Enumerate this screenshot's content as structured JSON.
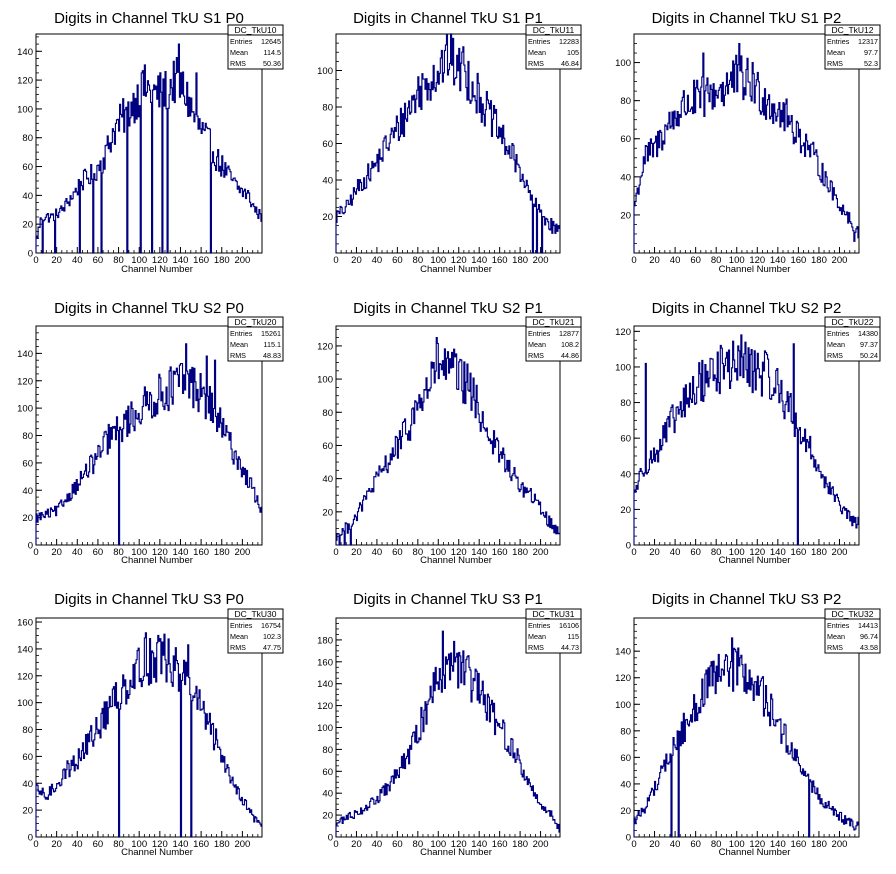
{
  "chart_data": [
    {
      "type": "histogram",
      "title": "Digits in Channel TkU S1 P0",
      "xlabel": "Channel Number",
      "ylabel": "",
      "xlim": [
        0,
        219
      ],
      "ylim": [
        0,
        152
      ],
      "xticks": [
        0,
        20,
        40,
        60,
        80,
        100,
        120,
        140,
        160,
        180,
        200
      ],
      "yticks": [
        0,
        20,
        40,
        60,
        80,
        100,
        120,
        140
      ],
      "stats": {
        "name": "DC_TkU10",
        "entries": "12645",
        "mean": "114.5",
        "rms": "50.36"
      },
      "anchors": [
        [
          0,
          10
        ],
        [
          5,
          25
        ],
        [
          15,
          25
        ],
        [
          25,
          30
        ],
        [
          35,
          40
        ],
        [
          45,
          50
        ],
        [
          55,
          55
        ],
        [
          65,
          65
        ],
        [
          75,
          85
        ],
        [
          85,
          95
        ],
        [
          95,
          105
        ],
        [
          105,
          115
        ],
        [
          115,
          110
        ],
        [
          125,
          112
        ],
        [
          135,
          120
        ],
        [
          145,
          110
        ],
        [
          155,
          90
        ],
        [
          165,
          80
        ],
        [
          175,
          65
        ],
        [
          185,
          55
        ],
        [
          195,
          45
        ],
        [
          205,
          40
        ],
        [
          212,
          30
        ],
        [
          218,
          25
        ]
      ],
      "spikes": [
        [
          102,
          125
        ],
        [
          138,
          145
        ],
        [
          155,
          125
        ]
      ],
      "zeros": [
        6,
        18,
        42,
        55,
        63,
        88,
        101,
        112,
        122,
        127,
        169
      ]
    },
    {
      "type": "histogram",
      "title": "Digits in Channel TkU S1 P1",
      "xlabel": "Channel Number",
      "ylabel": "",
      "xlim": [
        0,
        219
      ],
      "ylim": [
        0,
        120
      ],
      "xticks": [
        0,
        20,
        40,
        60,
        80,
        100,
        120,
        140,
        160,
        180,
        200
      ],
      "yticks": [
        20,
        40,
        60,
        80,
        100
      ],
      "stats": {
        "name": "DC_TkU11",
        "entries": "12283",
        "mean": "105",
        "rms": "46.84"
      },
      "anchors": [
        [
          0,
          20
        ],
        [
          10,
          25
        ],
        [
          20,
          35
        ],
        [
          30,
          42
        ],
        [
          40,
          50
        ],
        [
          50,
          60
        ],
        [
          60,
          68
        ],
        [
          70,
          78
        ],
        [
          80,
          88
        ],
        [
          90,
          95
        ],
        [
          100,
          100
        ],
        [
          110,
          108
        ],
        [
          120,
          100
        ],
        [
          130,
          95
        ],
        [
          140,
          85
        ],
        [
          150,
          75
        ],
        [
          160,
          65
        ],
        [
          170,
          55
        ],
        [
          180,
          45
        ],
        [
          190,
          30
        ],
        [
          200,
          22
        ],
        [
          210,
          15
        ],
        [
          218,
          12
        ]
      ],
      "spikes": [
        [
          107,
          114
        ],
        [
          124,
          113
        ]
      ],
      "zeros": [
        192,
        196,
        201
      ]
    },
    {
      "type": "histogram",
      "title": "Digits in Channel TkU S1 P2",
      "xlabel": "Channel Number",
      "ylabel": "",
      "xlim": [
        0,
        219
      ],
      "ylim": [
        0,
        115
      ],
      "xticks": [
        0,
        20,
        40,
        60,
        80,
        100,
        120,
        140,
        160,
        180,
        200
      ],
      "yticks": [
        20,
        40,
        60,
        80,
        100
      ],
      "stats": {
        "name": "DC_TkU12",
        "entries": "12317",
        "mean": "97.7",
        "rms": "52.3"
      },
      "anchors": [
        [
          0,
          25
        ],
        [
          10,
          50
        ],
        [
          20,
          55
        ],
        [
          30,
          65
        ],
        [
          40,
          72
        ],
        [
          50,
          78
        ],
        [
          60,
          80
        ],
        [
          70,
          82
        ],
        [
          80,
          85
        ],
        [
          90,
          88
        ],
        [
          100,
          92
        ],
        [
          110,
          90
        ],
        [
          120,
          85
        ],
        [
          130,
          80
        ],
        [
          140,
          75
        ],
        [
          150,
          70
        ],
        [
          160,
          62
        ],
        [
          170,
          55
        ],
        [
          180,
          45
        ],
        [
          190,
          35
        ],
        [
          200,
          25
        ],
        [
          210,
          18
        ],
        [
          214,
          10
        ]
      ],
      "spikes": [
        [
          67,
          105
        ],
        [
          102,
          110
        ],
        [
          115,
          100
        ]
      ],
      "zeros": []
    },
    {
      "type": "histogram",
      "title": "Digits in Channel TkU S2 P0",
      "xlabel": "Channel Number",
      "ylabel": "",
      "xlim": [
        0,
        219
      ],
      "ylim": [
        0,
        160
      ],
      "xticks": [
        0,
        20,
        40,
        60,
        80,
        100,
        120,
        140,
        160,
        180,
        200
      ],
      "yticks": [
        0,
        20,
        40,
        60,
        80,
        100,
        120,
        140
      ],
      "stats": {
        "name": "DC_TkU20",
        "entries": "15261",
        "mean": "115.1",
        "rms": "48.83"
      },
      "anchors": [
        [
          0,
          20
        ],
        [
          10,
          22
        ],
        [
          20,
          25
        ],
        [
          30,
          35
        ],
        [
          40,
          45
        ],
        [
          50,
          55
        ],
        [
          60,
          65
        ],
        [
          70,
          78
        ],
        [
          80,
          85
        ],
        [
          90,
          92
        ],
        [
          100,
          98
        ],
        [
          110,
          105
        ],
        [
          120,
          110
        ],
        [
          130,
          115
        ],
        [
          140,
          120
        ],
        [
          150,
          118
        ],
        [
          160,
          110
        ],
        [
          170,
          100
        ],
        [
          180,
          85
        ],
        [
          190,
          70
        ],
        [
          200,
          55
        ],
        [
          210,
          40
        ],
        [
          218,
          25
        ]
      ],
      "spikes": [
        [
          145,
          147
        ],
        [
          165,
          138
        ],
        [
          173,
          135
        ]
      ],
      "zeros": [
        80
      ]
    },
    {
      "type": "histogram",
      "title": "Digits in Channel TkU S2 P1",
      "xlabel": "Channel Number",
      "ylabel": "",
      "xlim": [
        0,
        219
      ],
      "ylim": [
        0,
        132
      ],
      "xticks": [
        0,
        20,
        40,
        60,
        80,
        100,
        120,
        140,
        160,
        180,
        200
      ],
      "yticks": [
        20,
        40,
        60,
        80,
        100,
        120
      ],
      "stats": {
        "name": "DC_TkU21",
        "entries": "12877",
        "mean": "108.2",
        "rms": "44.86"
      },
      "anchors": [
        [
          0,
          5
        ],
        [
          10,
          10
        ],
        [
          20,
          18
        ],
        [
          30,
          30
        ],
        [
          40,
          40
        ],
        [
          50,
          50
        ],
        [
          60,
          60
        ],
        [
          70,
          70
        ],
        [
          80,
          85
        ],
        [
          90,
          95
        ],
        [
          100,
          110
        ],
        [
          110,
          105
        ],
        [
          120,
          100
        ],
        [
          130,
          95
        ],
        [
          140,
          80
        ],
        [
          150,
          65
        ],
        [
          160,
          55
        ],
        [
          170,
          45
        ],
        [
          180,
          35
        ],
        [
          190,
          30
        ],
        [
          200,
          22
        ],
        [
          210,
          12
        ],
        [
          218,
          8
        ]
      ],
      "spikes": [
        [
          98,
          125
        ],
        [
          115,
          118
        ]
      ],
      "zeros": [
        3,
        8,
        14
      ]
    },
    {
      "type": "histogram",
      "title": "Digits in Channel TkU S2 P2",
      "xlabel": "Channel Number",
      "ylabel": "",
      "xlim": [
        0,
        219
      ],
      "ylim": [
        0,
        123
      ],
      "xticks": [
        0,
        20,
        40,
        60,
        80,
        100,
        120,
        140,
        160,
        180,
        200
      ],
      "yticks": [
        0,
        20,
        40,
        60,
        80,
        100,
        120
      ],
      "stats": {
        "name": "DC_TkU22",
        "entries": "14380",
        "mean": "97.37",
        "rms": "50.24"
      },
      "anchors": [
        [
          0,
          30
        ],
        [
          10,
          45
        ],
        [
          20,
          50
        ],
        [
          30,
          62
        ],
        [
          40,
          72
        ],
        [
          50,
          80
        ],
        [
          60,
          88
        ],
        [
          70,
          95
        ],
        [
          80,
          98
        ],
        [
          90,
          100
        ],
        [
          100,
          102
        ],
        [
          110,
          100
        ],
        [
          120,
          98
        ],
        [
          130,
          95
        ],
        [
          140,
          88
        ],
        [
          150,
          78
        ],
        [
          160,
          65
        ],
        [
          170,
          55
        ],
        [
          180,
          42
        ],
        [
          190,
          32
        ],
        [
          200,
          22
        ],
        [
          210,
          15
        ],
        [
          214,
          12
        ]
      ],
      "spikes": [
        [
          11,
          102
        ],
        [
          104,
          118
        ],
        [
          155,
          113
        ]
      ],
      "zeros": [
        159
      ]
    },
    {
      "type": "histogram",
      "title": "Digits in Channel TkU S3 P0",
      "xlabel": "Channel Number",
      "ylabel": "",
      "xlim": [
        0,
        219
      ],
      "ylim": [
        0,
        163
      ],
      "xticks": [
        0,
        20,
        40,
        60,
        80,
        100,
        120,
        140,
        160,
        180,
        200
      ],
      "yticks": [
        0,
        20,
        40,
        60,
        80,
        100,
        120,
        140,
        160
      ],
      "stats": {
        "name": "DC_TkU30",
        "entries": "16754",
        "mean": "102.3",
        "rms": "47.75"
      },
      "anchors": [
        [
          0,
          35
        ],
        [
          10,
          30
        ],
        [
          20,
          40
        ],
        [
          30,
          50
        ],
        [
          40,
          58
        ],
        [
          50,
          70
        ],
        [
          60,
          82
        ],
        [
          70,
          95
        ],
        [
          80,
          108
        ],
        [
          90,
          118
        ],
        [
          100,
          128
        ],
        [
          110,
          132
        ],
        [
          120,
          135
        ],
        [
          130,
          130
        ],
        [
          140,
          122
        ],
        [
          150,
          110
        ],
        [
          160,
          95
        ],
        [
          170,
          78
        ],
        [
          180,
          60
        ],
        [
          190,
          42
        ],
        [
          200,
          28
        ],
        [
          210,
          15
        ],
        [
          218,
          8
        ]
      ],
      "spikes": [
        [
          106,
          152
        ],
        [
          118,
          150
        ],
        [
          147,
          143
        ]
      ],
      "zeros": [
        80,
        140,
        150
      ]
    },
    {
      "type": "histogram",
      "title": "Digits in Channel TkU S3 P1",
      "xlabel": "Channel Number",
      "ylabel": "",
      "xlim": [
        0,
        219
      ],
      "ylim": [
        0,
        200
      ],
      "xticks": [
        0,
        20,
        40,
        60,
        80,
        100,
        120,
        140,
        160,
        180,
        200
      ],
      "yticks": [
        0,
        20,
        40,
        60,
        80,
        100,
        120,
        140,
        160,
        180
      ],
      "stats": {
        "name": "DC_TkU31",
        "entries": "16106",
        "mean": "115",
        "rms": "44.73"
      },
      "anchors": [
        [
          0,
          12
        ],
        [
          10,
          18
        ],
        [
          20,
          22
        ],
        [
          30,
          28
        ],
        [
          40,
          35
        ],
        [
          50,
          45
        ],
        [
          60,
          58
        ],
        [
          70,
          75
        ],
        [
          80,
          95
        ],
        [
          90,
          125
        ],
        [
          100,
          150
        ],
        [
          110,
          160
        ],
        [
          120,
          155
        ],
        [
          130,
          145
        ],
        [
          140,
          130
        ],
        [
          150,
          115
        ],
        [
          160,
          100
        ],
        [
          170,
          85
        ],
        [
          180,
          65
        ],
        [
          190,
          45
        ],
        [
          200,
          30
        ],
        [
          210,
          20
        ],
        [
          218,
          8
        ]
      ],
      "spikes": [
        [
          104,
          188
        ],
        [
          112,
          168
        ]
      ],
      "zeros": []
    },
    {
      "type": "histogram",
      "title": "Digits in Channel TkU S3 P2",
      "xlabel": "Channel Number",
      "ylabel": "",
      "xlim": [
        0,
        219
      ],
      "ylim": [
        0,
        165
      ],
      "xticks": [
        0,
        20,
        40,
        60,
        80,
        100,
        120,
        140,
        160,
        180,
        200
      ],
      "yticks": [
        0,
        20,
        40,
        60,
        80,
        100,
        120,
        140
      ],
      "stats": {
        "name": "DC_TkU32",
        "entries": "14413",
        "mean": "96.74",
        "rms": "43.58"
      },
      "anchors": [
        [
          0,
          12
        ],
        [
          10,
          22
        ],
        [
          20,
          38
        ],
        [
          30,
          55
        ],
        [
          40,
          70
        ],
        [
          50,
          85
        ],
        [
          60,
          100
        ],
        [
          70,
          112
        ],
        [
          80,
          120
        ],
        [
          90,
          125
        ],
        [
          100,
          128
        ],
        [
          110,
          120
        ],
        [
          120,
          112
        ],
        [
          130,
          100
        ],
        [
          140,
          85
        ],
        [
          150,
          70
        ],
        [
          160,
          55
        ],
        [
          170,
          42
        ],
        [
          180,
          30
        ],
        [
          190,
          22
        ],
        [
          200,
          15
        ],
        [
          210,
          10
        ],
        [
          214,
          8
        ]
      ],
      "spikes": [
        [
          95,
          150
        ],
        [
          103,
          135
        ]
      ],
      "zeros": [
        36,
        43,
        170
      ]
    }
  ],
  "stat_labels": {
    "entries": "Entries",
    "mean": "Mean",
    "rms": "RMS"
  },
  "colors": {
    "line": "#000080",
    "axis": "#000000",
    "background": "#ffffff"
  }
}
